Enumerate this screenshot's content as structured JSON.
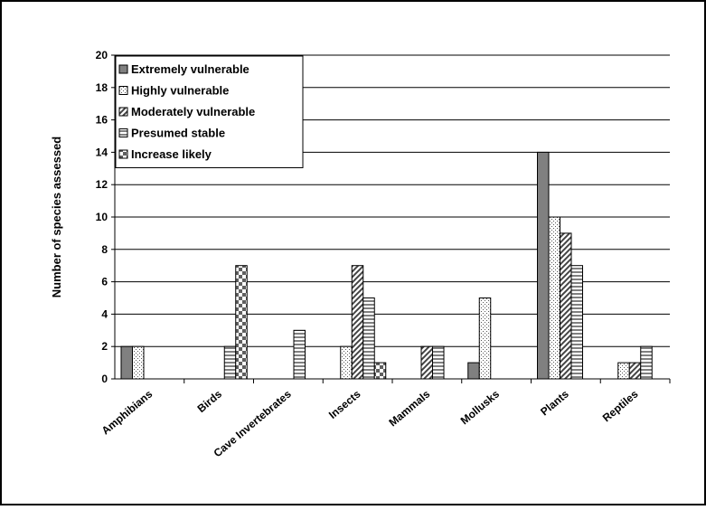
{
  "chart_data": {
    "type": "bar",
    "title": "",
    "xlabel": "",
    "ylabel": "Number of species assessed",
    "ylim": [
      0,
      20
    ],
    "yticks": [
      0,
      2,
      4,
      6,
      8,
      10,
      12,
      14,
      16,
      18,
      20
    ],
    "grid": true,
    "legend_position": "top-left",
    "categories": [
      "Amphibians",
      "Birds",
      "Cave Invertebrates",
      "Insects",
      "Mammals",
      "Mollusks",
      "Plants",
      "Reptiles"
    ],
    "series": [
      {
        "name": "Extremely vulnerable",
        "pattern": "solid",
        "color": "#808080",
        "values": [
          2,
          0,
          0,
          0,
          0,
          1,
          14,
          0
        ]
      },
      {
        "name": "Highly vulnerable",
        "pattern": "dots",
        "color": "#ffffff",
        "values": [
          2,
          0,
          0,
          2,
          0,
          5,
          10,
          1
        ]
      },
      {
        "name": "Moderately vulnerable",
        "pattern": "diagonal",
        "color": "#ffffff",
        "values": [
          0,
          0,
          0,
          7,
          2,
          0,
          9,
          1
        ]
      },
      {
        "name": "Presumed stable",
        "pattern": "horizontal",
        "color": "#ffffff",
        "values": [
          0,
          2,
          3,
          5,
          2,
          0,
          7,
          2
        ]
      },
      {
        "name": "Increase likely",
        "pattern": "checker",
        "color": "#ffffff",
        "values": [
          0,
          7,
          0,
          1,
          0,
          0,
          0,
          0
        ]
      }
    ]
  }
}
